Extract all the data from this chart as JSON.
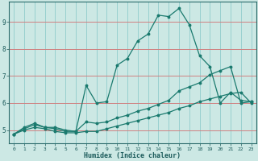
{
  "xlabel": "Humidex (Indice chaleur)",
  "ylabel": "",
  "bg_color": "#cce8e4",
  "line_color": "#1a7a6e",
  "grid_color_h": "#d08080",
  "grid_color_v": "#90cccc",
  "xlim": [
    -0.5,
    23.5
  ],
  "ylim": [
    4.5,
    9.75
  ],
  "yticks": [
    5,
    6,
    7,
    8,
    9
  ],
  "xticks": [
    0,
    1,
    2,
    3,
    4,
    5,
    6,
    7,
    8,
    9,
    10,
    11,
    12,
    13,
    14,
    15,
    16,
    17,
    18,
    19,
    20,
    21,
    22,
    23
  ],
  "line1_x": [
    0,
    1,
    2,
    3,
    4,
    5,
    6,
    7,
    8,
    9,
    10,
    11,
    12,
    13,
    14,
    15,
    16,
    17,
    18,
    19,
    20,
    21,
    22,
    23
  ],
  "line1_y": [
    4.85,
    5.1,
    5.25,
    5.1,
    5.1,
    5.0,
    4.95,
    6.65,
    6.0,
    6.05,
    7.4,
    7.65,
    8.3,
    8.55,
    9.25,
    9.2,
    9.5,
    8.9,
    7.75,
    7.35,
    6.0,
    6.4,
    6.1,
    6.05
  ],
  "line2_x": [
    0,
    1,
    2,
    3,
    4,
    5,
    6,
    7,
    8,
    9,
    10,
    11,
    12,
    13,
    14,
    15,
    16,
    17,
    18,
    19,
    20,
    21,
    22,
    23
  ],
  "line2_y": [
    4.85,
    5.05,
    5.2,
    5.1,
    5.05,
    4.95,
    4.95,
    5.3,
    5.25,
    5.3,
    5.45,
    5.55,
    5.7,
    5.8,
    5.95,
    6.1,
    6.45,
    6.6,
    6.75,
    7.05,
    7.2,
    7.35,
    6.0,
    6.05
  ],
  "line3_x": [
    0,
    1,
    2,
    3,
    4,
    5,
    6,
    7,
    8,
    9,
    10,
    11,
    12,
    13,
    14,
    15,
    16,
    17,
    18,
    19,
    20,
    21,
    22,
    23
  ],
  "line3_y": [
    4.85,
    5.0,
    5.1,
    5.05,
    4.95,
    4.9,
    4.9,
    4.95,
    4.95,
    5.05,
    5.15,
    5.25,
    5.35,
    5.45,
    5.55,
    5.65,
    5.8,
    5.9,
    6.05,
    6.15,
    6.25,
    6.35,
    6.4,
    6.0
  ]
}
